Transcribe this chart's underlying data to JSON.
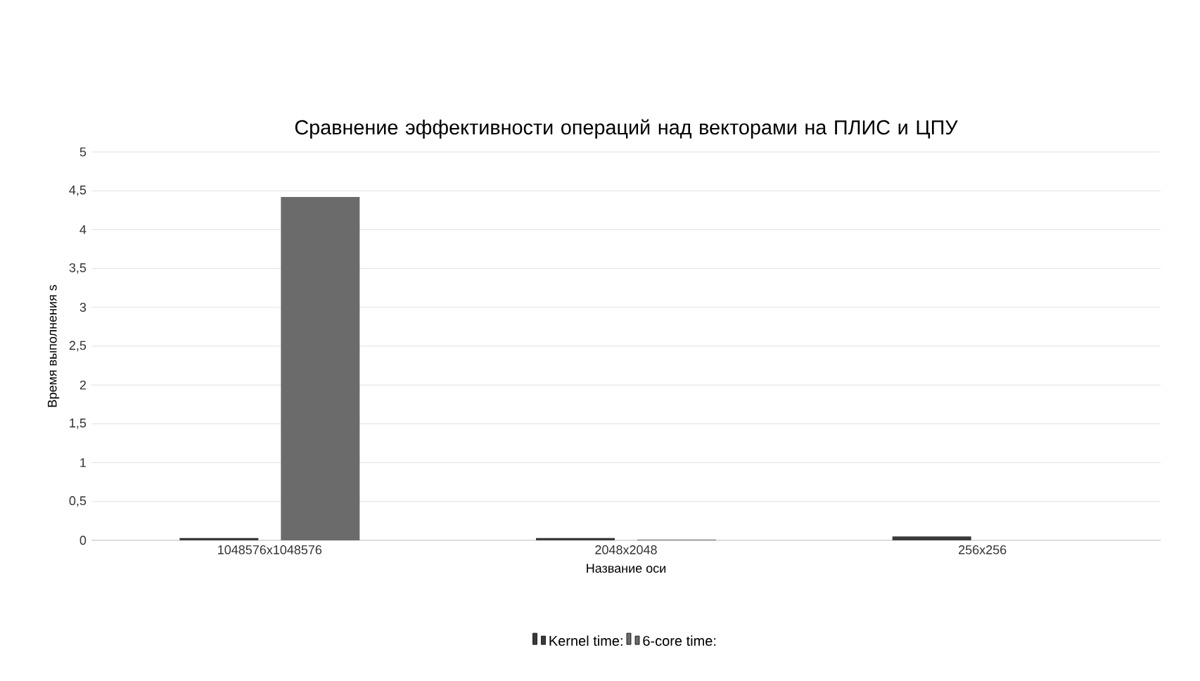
{
  "chart_data": {
    "type": "bar",
    "title": "Сравнение эффективности операций над векторами на ПЛИС и ЦПУ",
    "xlabel": "Название оси",
    "ylabel": "Время выполнения s",
    "categories": [
      "1048576x1048576",
      "2048x2048",
      "256x256"
    ],
    "series": [
      {
        "name": "Kernel time:",
        "color": "#3a3a3a",
        "values": [
          0.03,
          0.03,
          0.05
        ]
      },
      {
        "name": "6-core time:",
        "color": "#6b6b6b",
        "values": [
          4.42,
          0.01,
          0
        ]
      }
    ],
    "ylim": [
      0,
      5
    ],
    "yticks": [
      {
        "value": 0,
        "label": "0"
      },
      {
        "value": 0.5,
        "label": "0,5"
      },
      {
        "value": 1,
        "label": "1"
      },
      {
        "value": 1.5,
        "label": "1,5"
      },
      {
        "value": 2,
        "label": "2"
      },
      {
        "value": 2.5,
        "label": "2,5"
      },
      {
        "value": 3,
        "label": "3"
      },
      {
        "value": 3.5,
        "label": "3,5"
      },
      {
        "value": 4,
        "label": "4"
      },
      {
        "value": 4.5,
        "label": "4,5"
      },
      {
        "value": 5,
        "label": "5"
      }
    ],
    "grid": "y",
    "legend": "bottom"
  }
}
